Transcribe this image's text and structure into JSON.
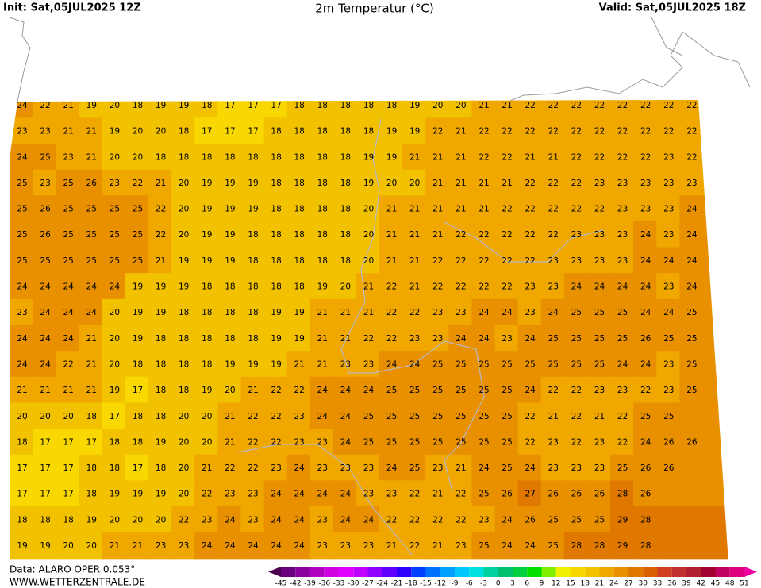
{
  "header": {
    "init": "Init: Sat,05JUL2025 12Z",
    "title": "2m Temperatur (°C)",
    "valid": "Valid: Sat,05JUL2025 18Z"
  },
  "footer": {
    "source": "Data: ALARO OPER 0.053°",
    "site": "WWW.WETTERZENTRALE.DE"
  },
  "legend": {
    "labels": [
      -45,
      -42,
      -39,
      -36,
      -33,
      -30,
      -27,
      -24,
      -21,
      -18,
      -15,
      -12,
      -9,
      -6,
      -3,
      0,
      3,
      6,
      9,
      12,
      15,
      18,
      21,
      24,
      27,
      30,
      33,
      36,
      39,
      42,
      45,
      48,
      51
    ],
    "colors": [
      "#4b0050",
      "#6a0080",
      "#8c00a0",
      "#b000c0",
      "#d000e0",
      "#e000ff",
      "#c000ff",
      "#9000ff",
      "#6000ff",
      "#3000ff",
      "#0040ff",
      "#0070ff",
      "#00a0ff",
      "#00c8ff",
      "#00e0e0",
      "#00d0a0",
      "#00c070",
      "#00d040",
      "#00e000",
      "#80f000",
      "#f0f000",
      "#f8d800",
      "#f2c200",
      "#f0a800",
      "#e89000",
      "#e07800",
      "#d86000",
      "#d04020",
      "#c03030",
      "#b02030",
      "#a00030",
      "#c00060",
      "#e00080",
      "#f000a0"
    ]
  },
  "grid": {
    "rows": [
      [
        24,
        22,
        21,
        19,
        20,
        18,
        19,
        19,
        18,
        17,
        17,
        17,
        18,
        18,
        18,
        18,
        18,
        19,
        20,
        20,
        21,
        21,
        22,
        22,
        22,
        22,
        22,
        22,
        22,
        22
      ],
      [
        23,
        23,
        21,
        21,
        19,
        20,
        20,
        18,
        17,
        17,
        17,
        18,
        18,
        18,
        18,
        18,
        19,
        19,
        22,
        21,
        22,
        22,
        22,
        22,
        22,
        22,
        22,
        22,
        22,
        22
      ],
      [
        24,
        25,
        23,
        21,
        20,
        20,
        18,
        18,
        18,
        18,
        18,
        18,
        18,
        18,
        18,
        19,
        19,
        21,
        21,
        21,
        22,
        22,
        21,
        21,
        22,
        22,
        22,
        22,
        23,
        22
      ],
      [
        25,
        23,
        25,
        26,
        23,
        22,
        21,
        20,
        19,
        19,
        19,
        18,
        18,
        18,
        18,
        19,
        20,
        20,
        21,
        21,
        21,
        21,
        22,
        22,
        22,
        23,
        23,
        23,
        23,
        23
      ],
      [
        25,
        26,
        25,
        25,
        25,
        25,
        22,
        20,
        19,
        19,
        19,
        18,
        18,
        18,
        18,
        20,
        21,
        21,
        21,
        21,
        21,
        22,
        22,
        22,
        22,
        22,
        23,
        23,
        23,
        24
      ],
      [
        25,
        26,
        25,
        25,
        25,
        25,
        22,
        20,
        19,
        19,
        18,
        18,
        18,
        18,
        18,
        20,
        21,
        21,
        21,
        22,
        22,
        22,
        22,
        22,
        23,
        23,
        23,
        24,
        23,
        24
      ],
      [
        25,
        25,
        25,
        25,
        25,
        25,
        21,
        19,
        19,
        19,
        18,
        18,
        18,
        18,
        18,
        20,
        21,
        21,
        22,
        22,
        22,
        22,
        22,
        23,
        23,
        23,
        23,
        24,
        24,
        24
      ],
      [
        24,
        24,
        24,
        24,
        24,
        19,
        19,
        19,
        18,
        18,
        18,
        18,
        18,
        19,
        20,
        21,
        22,
        21,
        22,
        22,
        22,
        22,
        23,
        23,
        24,
        24,
        24,
        24,
        23,
        24
      ],
      [
        23,
        24,
        24,
        24,
        20,
        19,
        19,
        18,
        18,
        18,
        18,
        19,
        19,
        21,
        21,
        21,
        22,
        22,
        23,
        23,
        24,
        24,
        23,
        24,
        25,
        25,
        25,
        24,
        24,
        25
      ],
      [
        24,
        24,
        24,
        21,
        20,
        19,
        18,
        18,
        18,
        18,
        18,
        19,
        19,
        21,
        21,
        22,
        22,
        23,
        23,
        24,
        24,
        23,
        24,
        25,
        25,
        25,
        25,
        26,
        25,
        25
      ],
      [
        24,
        24,
        22,
        21,
        20,
        18,
        18,
        18,
        18,
        19,
        19,
        19,
        21,
        21,
        23,
        23,
        24,
        24,
        25,
        25,
        25,
        25,
        25,
        25,
        25,
        25,
        24,
        24,
        23,
        25
      ],
      [
        21,
        21,
        21,
        21,
        19,
        17,
        18,
        18,
        19,
        20,
        21,
        22,
        22,
        24,
        24,
        24,
        25,
        25,
        25,
        25,
        25,
        25,
        24,
        22,
        22,
        23,
        23,
        22,
        23,
        25
      ],
      [
        20,
        20,
        20,
        18,
        17,
        18,
        18,
        20,
        20,
        21,
        22,
        22,
        23,
        24,
        24,
        25,
        25,
        25,
        25,
        25,
        25,
        25,
        22,
        21,
        22,
        21,
        22,
        25,
        25
      ],
      [
        18,
        17,
        17,
        17,
        18,
        18,
        19,
        20,
        20,
        21,
        22,
        22,
        23,
        23,
        24,
        25,
        25,
        25,
        25,
        25,
        25,
        25,
        22,
        23,
        22,
        23,
        22,
        24,
        26,
        26
      ],
      [
        17,
        17,
        17,
        18,
        18,
        17,
        18,
        20,
        21,
        22,
        22,
        23,
        24,
        23,
        23,
        23,
        24,
        25,
        23,
        21,
        24,
        25,
        24,
        23,
        23,
        23,
        25,
        26,
        26
      ],
      [
        17,
        17,
        17,
        18,
        19,
        19,
        19,
        20,
        22,
        23,
        23,
        24,
        24,
        24,
        24,
        23,
        23,
        22,
        21,
        22,
        25,
        26,
        27,
        26,
        26,
        26,
        28,
        26
      ],
      [
        18,
        18,
        18,
        19,
        20,
        20,
        20,
        22,
        23,
        24,
        23,
        24,
        24,
        23,
        24,
        24,
        22,
        22,
        22,
        22,
        23,
        24,
        26,
        25,
        25,
        25,
        29,
        28
      ],
      [
        19,
        19,
        20,
        20,
        21,
        21,
        23,
        23,
        24,
        24,
        24,
        24,
        24,
        23,
        23,
        23,
        21,
        22,
        21,
        23,
        25,
        24,
        24,
        25,
        28,
        28,
        29,
        28
      ]
    ]
  }
}
